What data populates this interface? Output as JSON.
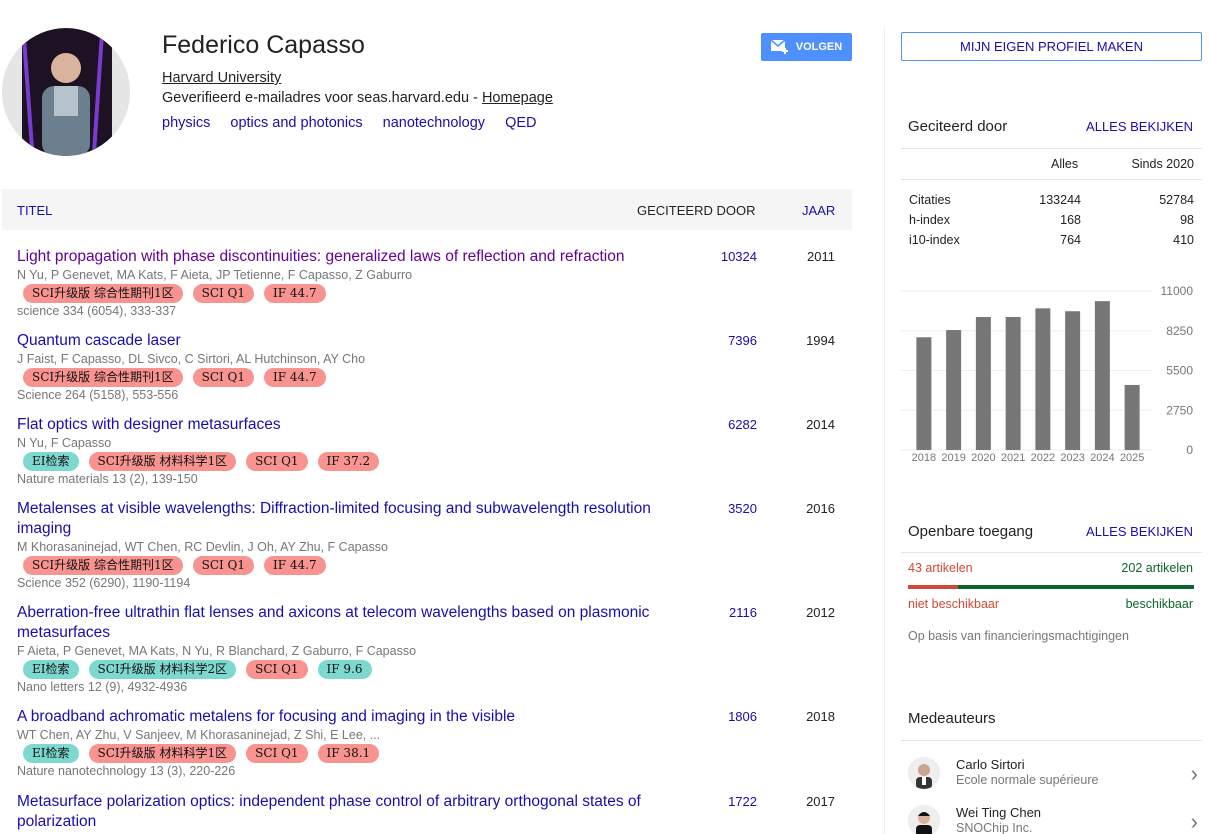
{
  "profile": {
    "name": "Federico Capasso",
    "affiliation": "Harvard University",
    "verified_prefix": "Geverifieerd e-mailadres voor seas.harvard.edu - ",
    "homepage_label": "Homepage",
    "interests": [
      "physics",
      "optics and photonics",
      "nanotechnology",
      "QED"
    ],
    "follow_label": "VOLGEN"
  },
  "table": {
    "col_title": "TITEL",
    "col_cited": "GECITEERD DOOR",
    "col_year": "JAAR",
    "rows": [
      {
        "title": "Light propagation with phase discontinuities: generalized laws of reflection and refraction",
        "authors": "N Yu, P Genevet, MA Kats, F Aieta, JP Tetienne, F Capasso, Z Gaburro",
        "tags": [
          "SCI升级版 综合性期刊1区",
          "SCI Q1",
          "IF 44.7"
        ],
        "venue": "science 334 (6054), 333-337",
        "cited": "10324",
        "year": "2011"
      },
      {
        "title": "Quantum cascade laser",
        "authors": "J Faist, F Capasso, DL Sivco, C Sirtori, AL Hutchinson, AY Cho",
        "tags": [
          "SCI升级版 综合性期刊1区",
          "SCI Q1",
          "IF 44.7"
        ],
        "venue": "Science 264 (5158), 553-556",
        "cited": "7396",
        "year": "1994"
      },
      {
        "title": "Flat optics with designer metasurfaces",
        "authors": "N Yu, F Capasso",
        "tags": [
          "EI检索",
          "SCI升级版 材料科学1区",
          "SCI Q1",
          "IF 37.2"
        ],
        "venue": "Nature materials 13 (2), 139-150",
        "cited": "6282",
        "year": "2014"
      },
      {
        "title_line1": "Metalenses at visible wavelengths: Diffraction-limited focusing and subwavelength resolution",
        "title_line2": "imaging",
        "authors": "M Khorasaninejad, WT Chen, RC Devlin, J Oh, AY Zhu, F Capasso",
        "tags": [
          "SCI升级版 综合性期刊1区",
          "SCI Q1",
          "IF 44.7"
        ],
        "venue": "Science 352 (6290), 1190-1194",
        "cited": "3520",
        "year": "2016"
      },
      {
        "title_line1": "Aberration-free ultrathin flat lenses and axicons at telecom wavelengths based on plasmonic",
        "title_line2": "metasurfaces",
        "authors": "F Aieta, P Genevet, MA Kats, N Yu, R Blanchard, Z Gaburro, F Capasso",
        "tags": [
          "EI检索",
          "SCI升级版 材料科学2区",
          "SCI Q1",
          "IF 9.6"
        ],
        "venue": "Nano letters 12 (9), 4932-4936",
        "cited": "2116",
        "year": "2012"
      },
      {
        "title": "A broadband achromatic metalens for focusing and imaging in the visible",
        "authors": "WT Chen, AY Zhu, V Sanjeev, M Khorasaninejad, Z Shi, E Lee, ...",
        "tags": [
          "EI检索",
          "SCI升级版 材料科学1区",
          "SCI Q1",
          "IF 38.1"
        ],
        "venue": "Nature nanotechnology 13 (3), 220-226",
        "cited": "1806",
        "year": "2018"
      },
      {
        "title_line1": "Metasurface polarization optics: independent phase control of arbitrary orthogonal states of",
        "title_line2": "polarization",
        "cited": "1722",
        "year": "2017"
      }
    ]
  },
  "right": {
    "own_profile_label": "MIJN EIGEN PROFIEL MAKEN",
    "cited_by": {
      "heading": "Geciteerd door",
      "view_all": "ALLES BEKIJKEN",
      "col_all": "Alles",
      "col_since": "Sinds 2020",
      "rows": [
        {
          "label": "Citaties",
          "all": "133244",
          "since": "52784"
        },
        {
          "label": "h-index",
          "all": "168",
          "since": "98"
        },
        {
          "label": "i10-index",
          "all": "764",
          "since": "410"
        }
      ]
    },
    "open_access": {
      "heading": "Openbare toegang",
      "view_all": "ALLES BEKIJKEN",
      "unavailable_count": "43 artikelen",
      "available_count": "202 artikelen",
      "unavailable_label": "niet beschikbaar",
      "available_label": "beschikbaar",
      "note": "Op basis van financieringsmachtigingen",
      "unavailable_color": "#d14836",
      "available_color": "#0d652d",
      "unavailable_fraction": 0.176
    },
    "coauthors": {
      "heading": "Medeauteurs",
      "items": [
        {
          "name": "Carlo Sirtori",
          "org": "Ecole normale supérieure"
        },
        {
          "name": "Wei Ting Chen",
          "org": "SNOChip Inc."
        }
      ]
    }
  },
  "chart_data": {
    "type": "bar",
    "categories": [
      "2018",
      "2019",
      "2020",
      "2021",
      "2022",
      "2023",
      "2024",
      "2025"
    ],
    "values": [
      7800,
      8300,
      9200,
      9200,
      9800,
      9600,
      10300,
      4500
    ],
    "yticks": [
      "11000",
      "8250",
      "5500",
      "2750",
      "0"
    ],
    "ylim": [
      0,
      11000
    ],
    "bar_color": "#777777"
  }
}
